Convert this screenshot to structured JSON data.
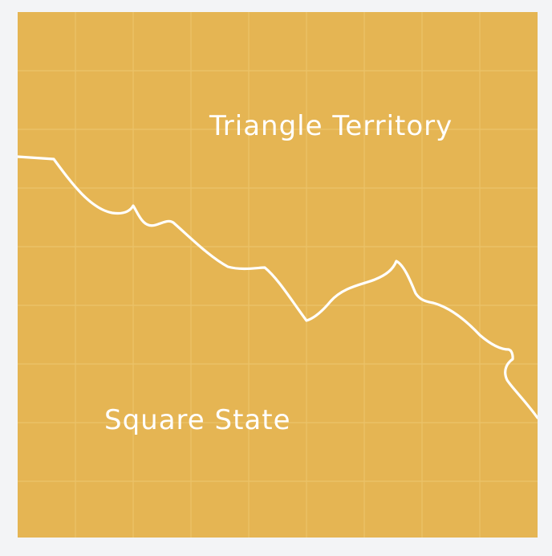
{
  "map": {
    "regions": {
      "north_label": "Triangle Territory",
      "south_label": "Square State"
    },
    "colors": {
      "background": "#f3f4f6",
      "land": "#e5b553",
      "grid": "#edc66f",
      "border": "#ffffff",
      "label": "#ffffff"
    }
  }
}
